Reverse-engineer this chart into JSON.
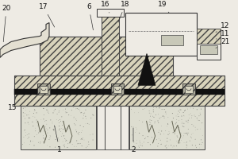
{
  "bg_color": "#eeebe4",
  "hatch_fc": "#d8d3bb",
  "hatch_ec": "#444444",
  "black": "#111111",
  "dark_gray": "#555555",
  "mid_gray": "#999999",
  "light_gray": "#ccccaa",
  "stone_fc": "#ddddd0",
  "label_fs": 6.5,
  "figw": 3.0,
  "figh": 2.0,
  "dpi": 100
}
